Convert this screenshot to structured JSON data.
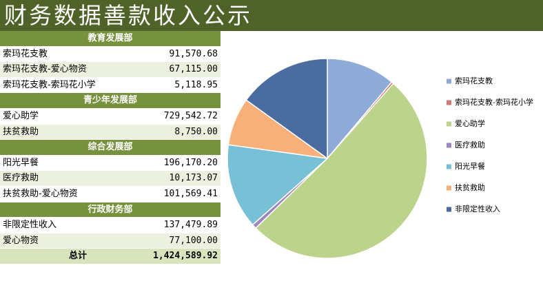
{
  "header": {
    "title": "财务数据善款收入公示"
  },
  "table": {
    "sections": [
      {
        "title": "教育发展部",
        "rows": [
          [
            "索玛花支教",
            "91,570.68"
          ],
          [
            "索玛花支教-爱心物资",
            "67,115.00"
          ],
          [
            "索玛花支教-索玛花小学",
            "5,118.95"
          ]
        ]
      },
      {
        "title": "青少年发展部",
        "rows": [
          [
            "爱心助学",
            "729,542.72"
          ],
          [
            "扶贫救助",
            "8,750.00"
          ]
        ]
      },
      {
        "title": "综合发展部",
        "rows": [
          [
            "阳光早餐",
            "196,170.20"
          ],
          [
            "医疗救助",
            "10,173.07"
          ],
          [
            "扶贫救助-爱心物资",
            "101,569.41"
          ]
        ]
      },
      {
        "title": "行政财务部",
        "rows": [
          [
            "非限定性收入",
            "137,479.89"
          ],
          [
            "爱心物资",
            "77,100.00"
          ]
        ]
      }
    ],
    "total": [
      "总计",
      "1,424,589.92"
    ]
  },
  "chart_data": {
    "type": "pie",
    "categories": [
      "索玛花支教",
      "索玛花支教-索玛花小学",
      "爱心助学",
      "医疗救助",
      "阳光早餐",
      "扶贫救助",
      "非限定性收入"
    ],
    "values": [
      158685.68,
      5118.95,
      729542.72,
      10173.07,
      196170.2,
      110319.41,
      214579.89
    ],
    "colors": [
      "#8eaad6",
      "#d07a78",
      "#bcd38c",
      "#9d86bd",
      "#78c0d6",
      "#f8b07a",
      "#4a6c9e"
    ],
    "legend": "right"
  }
}
